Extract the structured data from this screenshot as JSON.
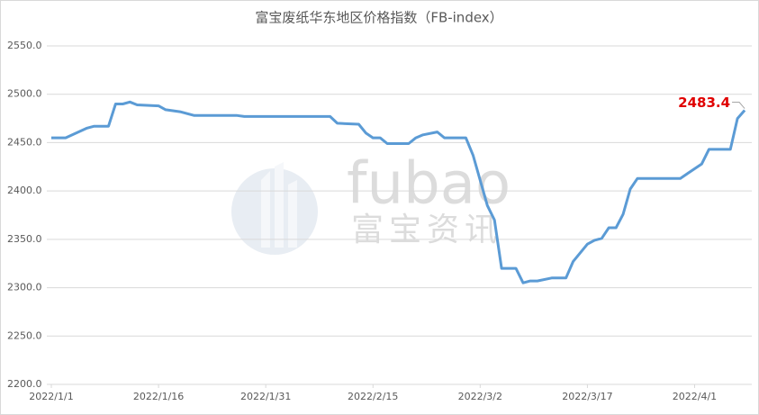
{
  "chart_data": {
    "type": "line",
    "title": "富宝废纸华东地区价格指数（FB-index）",
    "watermark": [
      "fubao",
      "富宝资讯"
    ],
    "x": [
      "2022/1/1",
      "2022/1/3",
      "2022/1/6",
      "2022/1/7",
      "2022/1/9",
      "2022/1/10",
      "2022/1/11",
      "2022/1/12",
      "2022/1/13",
      "2022/1/16",
      "2022/1/17",
      "2022/1/19",
      "2022/1/21",
      "2022/1/27",
      "2022/1/28",
      "2022/2/9",
      "2022/2/10",
      "2022/2/13",
      "2022/2/14",
      "2022/2/15",
      "2022/2/16",
      "2022/2/17",
      "2022/2/20",
      "2022/2/21",
      "2022/2/22",
      "2022/2/24",
      "2022/2/25",
      "2022/2/28",
      "2022/3/1",
      "2022/3/3",
      "2022/3/4",
      "2022/3/5",
      "2022/3/7",
      "2022/3/8",
      "2022/3/9",
      "2022/3/10",
      "2022/3/12",
      "2022/3/14",
      "2022/3/15",
      "2022/3/17",
      "2022/3/18",
      "2022/3/19",
      "2022/3/20",
      "2022/3/21",
      "2022/3/22",
      "2022/3/23",
      "2022/3/24",
      "2022/3/30",
      "2022/3/31",
      "2022/4/2",
      "2022/4/3",
      "2022/4/6",
      "2022/4/7",
      "2022/4/8"
    ],
    "series": [
      {
        "color": "#5b9bd5",
        "values": [
          2455,
          2455,
          2465,
          2467,
          2467,
          2490,
          2490,
          2492,
          2489,
          2488,
          2484,
          2482,
          2478,
          2478,
          2477,
          2477,
          2470,
          2469,
          2460,
          2455,
          2455,
          2449,
          2449,
          2455,
          2458,
          2461,
          2455,
          2455,
          2437,
          2385,
          2370,
          2320,
          2320,
          2305,
          2307,
          2307,
          2310,
          2310,
          2327,
          2345,
          2349,
          2351,
          2362,
          2362,
          2376,
          2402,
          2413,
          2413,
          2418,
          2428,
          2443,
          2443,
          2475,
          2483.4
        ],
        "value_labels": {
          "53": "2483.4"
        }
      }
    ],
    "xlim": [
      "2022/1/1",
      "2022/4/9"
    ],
    "xticks": [
      "2022/1/1",
      "2022/1/16",
      "2022/1/31",
      "2022/2/15",
      "2022/3/2",
      "2022/3/17",
      "2022/4/1"
    ],
    "ylim": [
      2200,
      2550
    ],
    "yticks": [
      {
        "value": 2200,
        "label": "2200.0"
      },
      {
        "value": 2250,
        "label": "2250.0"
      },
      {
        "value": 2300,
        "label": "2300.0"
      },
      {
        "value": 2350,
        "label": "2350.0"
      },
      {
        "value": 2400,
        "label": "2400.0"
      },
      {
        "value": 2450,
        "label": "2450.0"
      },
      {
        "value": 2500,
        "label": "2500.0"
      },
      {
        "value": 2550,
        "label": "2550.0"
      }
    ],
    "grid": true
  }
}
